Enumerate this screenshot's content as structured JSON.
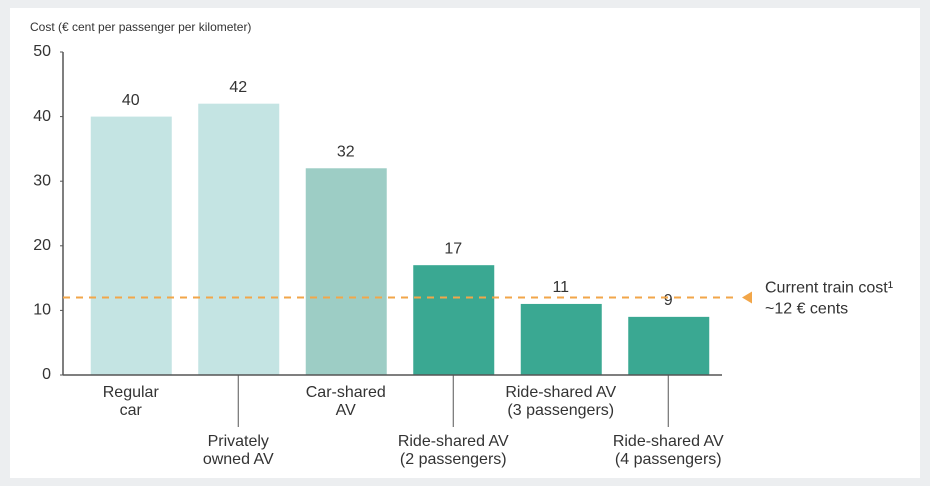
{
  "chart_data": {
    "type": "bar",
    "y_axis_label": "Cost (€ cent per passenger per kilometer)",
    "categories": [
      "Regular\ncar",
      "Privately\nowned AV",
      "Car-shared\nAV",
      "Ride-shared AV\n(2 passengers)",
      "Ride-shared AV\n(3 passengers)",
      "Ride-shared AV\n(4 passengers)"
    ],
    "values": [
      40,
      42,
      32,
      17,
      11,
      9
    ],
    "colors": [
      "#c4e4e3",
      "#c4e4e3",
      "#9dcdc5",
      "#3aa892",
      "#3aa892",
      "#3aa892"
    ],
    "ylim": [
      0,
      50
    ],
    "yticks": [
      0,
      10,
      20,
      30,
      40,
      50
    ],
    "reference_line": {
      "value": 12,
      "color": "#f2a649",
      "label": [
        "Current train cost¹",
        "~12 € cents"
      ]
    }
  }
}
